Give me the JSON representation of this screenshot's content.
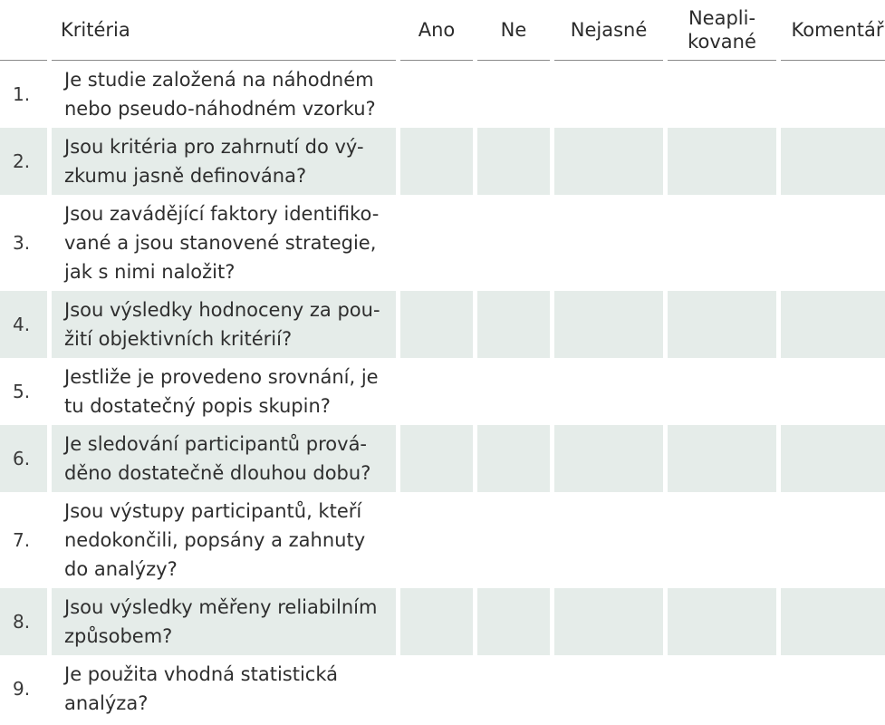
{
  "header": {
    "criteria": "Kritéria",
    "yes": "Ano",
    "no": "Ne",
    "unclear": "Nejasné",
    "na_line1": "Neapli-",
    "na_line2": "kované",
    "comment": "Komentář"
  },
  "rows": [
    {
      "num": "1.",
      "lines": [
        "Je studie založená na náhodném",
        "nebo pseudo-náhodném vzorku?"
      ]
    },
    {
      "num": "2.",
      "lines": [
        "Jsou kritéria pro zahrnutí do vý-",
        "zkumu jasně definována?"
      ]
    },
    {
      "num": "3.",
      "lines": [
        "Jsou zavádějící faktory identifiko-",
        "vané a jsou stanovené strategie,",
        "jak s nimi naložit?"
      ]
    },
    {
      "num": "4.",
      "lines": [
        "Jsou výsledky hodnoceny za pou-",
        "žití objektivních kritérií?"
      ]
    },
    {
      "num": "5.",
      "lines": [
        "Jestliže je provedeno srovnání, je",
        "tu dostatečný popis skupin?"
      ]
    },
    {
      "num": "6.",
      "lines": [
        "Je sledování participantů prová-",
        "děno dostatečně dlouhou dobu?"
      ]
    },
    {
      "num": "7.",
      "lines": [
        "Jsou výstupy participantů, kteří",
        "nedokončili, popsány a zahnuty",
        "do analýzy?"
      ]
    },
    {
      "num": "8.",
      "lines": [
        "Jsou výsledky měřeny reliabilním",
        "způsobem?"
      ]
    },
    {
      "num": "9.",
      "lines": [
        "Je použita vhodná statistická",
        "analýza?"
      ]
    }
  ],
  "colors": {
    "shade": "#e5ece9",
    "rule": "#8a8a8a"
  }
}
